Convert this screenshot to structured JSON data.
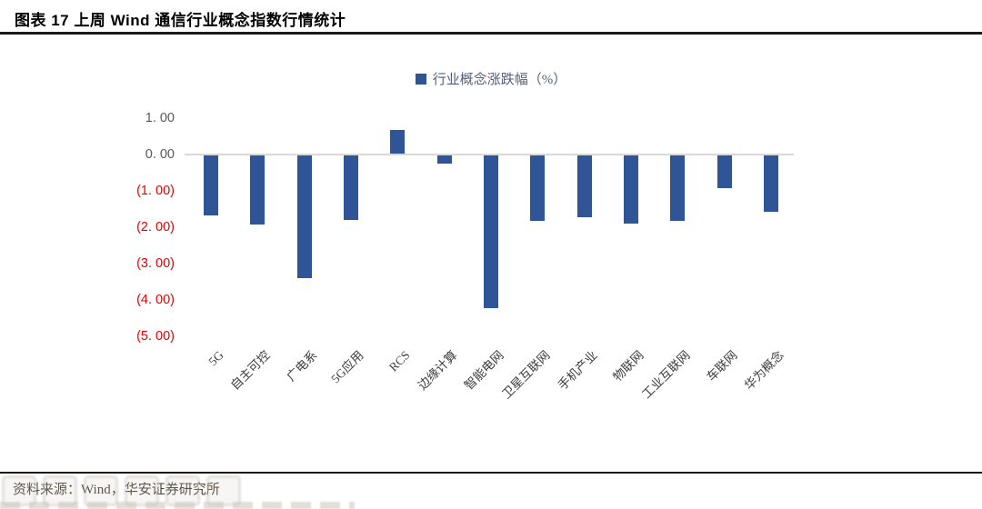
{
  "header": {
    "title": "图表 17 上周 Wind 通信行业概念指数行情统计"
  },
  "legend": {
    "label": "行业概念涨跌幅（%）",
    "swatch_color": "#2F5597"
  },
  "footer": {
    "source": "资料来源：Wind，华安证券研究所"
  },
  "chart_data": {
    "type": "bar",
    "title": "上周 Wind 通信行业概念指数行情统计",
    "series": [
      {
        "name": "行业概念涨跌幅（%）",
        "values": [
          -1.65,
          -1.9,
          -3.38,
          -1.78,
          0.66,
          -0.23,
          -4.2,
          -1.79,
          -1.7,
          -1.87,
          -1.8,
          -0.9,
          -1.55
        ]
      }
    ],
    "categories": [
      "5G",
      "自主可控",
      "广电系",
      "5G应用",
      "RCS",
      "边缘计算",
      "智能电网",
      "卫星互联网",
      "手机产业",
      "物联网",
      "工业互联网",
      "车联网",
      "华为概念"
    ],
    "xlabel": "",
    "ylabel": "",
    "ylim": [
      -5,
      1
    ],
    "yticks": [
      1,
      0,
      -1,
      -2,
      -3,
      -4,
      -5
    ],
    "ytick_labels": [
      "1. 00",
      "0. 00",
      "(1. 00)",
      "(2. 00)",
      "(3. 00)",
      "(4. 00)",
      "(5. 00)"
    ],
    "ytick_color_positive": "#595959",
    "ytick_color_negative": "#ED0000",
    "bar_color": "#2F5597",
    "zero_line_color": "#D9D9D9",
    "grid": false,
    "legend_position": "top-center"
  }
}
